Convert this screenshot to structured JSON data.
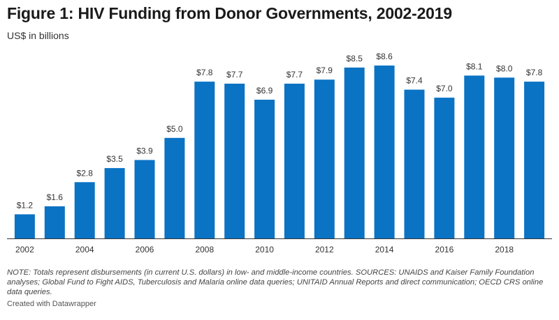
{
  "header": {
    "title": "Figure 1: HIV Funding from Donor Governments, 2002-2019",
    "subtitle": "US$ in billions"
  },
  "chart_data": {
    "type": "bar",
    "title": "Figure 1: HIV Funding from Donor Governments, 2002-2019",
    "ylabel": "US$ in billions",
    "xlabel": "",
    "categories": [
      "2002",
      "2003",
      "2004",
      "2005",
      "2006",
      "2007",
      "2008",
      "2009",
      "2010",
      "2011",
      "2012",
      "2013",
      "2014",
      "2015",
      "2016",
      "2017",
      "2018",
      "2019"
    ],
    "values": [
      1.2,
      1.6,
      2.8,
      3.5,
      3.9,
      5.0,
      7.8,
      7.7,
      6.9,
      7.7,
      7.9,
      8.5,
      8.6,
      7.4,
      7.0,
      8.1,
      8.0,
      7.8
    ],
    "data_labels": [
      "$1.2",
      "$1.6",
      "$2.8",
      "$3.5",
      "$3.9",
      "$5.0",
      "$7.8",
      "$7.7",
      "$6.9",
      "$7.7",
      "$7.9",
      "$8.5",
      "$8.6",
      "$7.4",
      "$7.0",
      "$8.1",
      "$8.0",
      "$7.8"
    ],
    "x_tick_labels": [
      "2002",
      "2004",
      "2006",
      "2008",
      "2010",
      "2012",
      "2014",
      "2016",
      "2018"
    ],
    "ylim": [
      0,
      8.6
    ],
    "grid": false,
    "bar_color": "#0a73c4"
  },
  "footer": {
    "notes": "NOTE: Totals represent disbursements (in current U.S. dollars) in low- and middle-income countries. SOURCES: UNAIDS and Kaiser Family Foundation analyses; Global Fund to Fight AIDS, Tuberculosis and Malaria online data queries; UNITAID Annual Reports and direct communication; OECD CRS online data queries.",
    "credit": "Created with Datawrapper"
  }
}
